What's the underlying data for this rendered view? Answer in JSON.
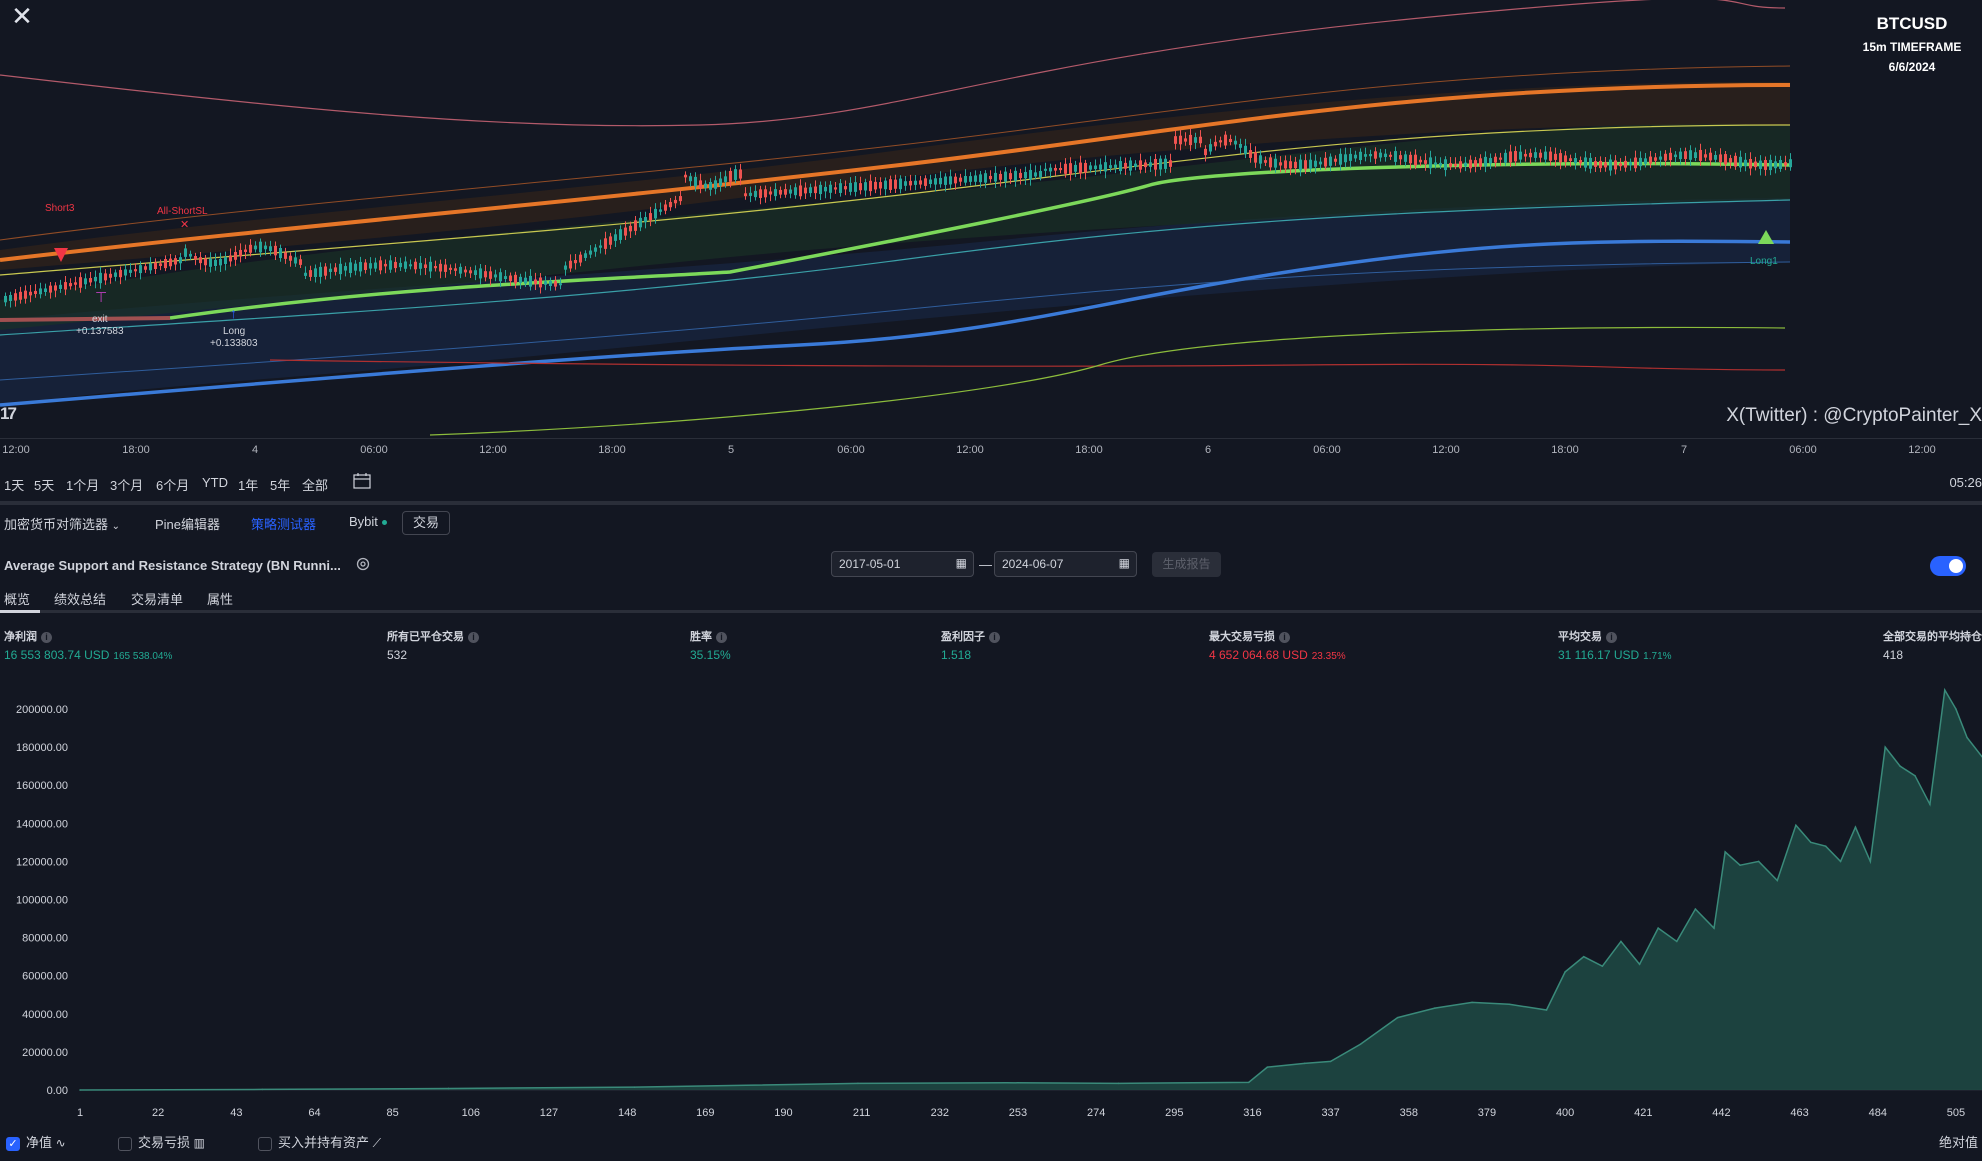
{
  "chart": {
    "symbol": "BTCUSD",
    "timeframe": "15m TIMEFRAME",
    "date": "6/6/2024",
    "watermark": "X(Twitter) : @CryptoPainter_X",
    "logo": "17",
    "labels": {
      "short3": "Short3",
      "all_short_sl": "All-ShortSL",
      "exit": "exit",
      "exit_value": "+0.137583",
      "long": "Long",
      "long_value": "+0.133803",
      "long1": "Long1"
    },
    "time_axis": [
      "12:00",
      "18:00",
      "4",
      "06:00",
      "12:00",
      "18:00",
      "5",
      "06:00",
      "12:00",
      "18:00",
      "6",
      "06:00",
      "12:00",
      "18:00",
      "7",
      "06:00",
      "12:00"
    ]
  },
  "range_bar": {
    "buttons": [
      "1天",
      "5天",
      "1个月",
      "3个月",
      "6个月",
      "YTD",
      "1年",
      "5年",
      "全部"
    ],
    "clock": "05:26"
  },
  "tabs": {
    "screener": "加密货币对筛选器",
    "pine_editor": "Pine编辑器",
    "strategy_tester": "策略测试器",
    "bybit": "Bybit",
    "trade": "交易"
  },
  "strategy": {
    "name": "Average Support and Resistance Strategy (BN Runni...",
    "date_from": "2017-05-01",
    "date_sep": "—",
    "date_to": "2024-06-07",
    "generate_report": "生成报告"
  },
  "sub_tabs": [
    "概览",
    "绩效总结",
    "交易清单",
    "属性"
  ],
  "metrics": [
    {
      "label": "净利润",
      "value": "16 553 803.74 USD",
      "sub": "165 538.04%",
      "color": "green"
    },
    {
      "label": "所有已平仓交易",
      "value": "532",
      "sub": "",
      "color": "white"
    },
    {
      "label": "胜率",
      "value": "35.15%",
      "sub": "",
      "color": "green"
    },
    {
      "label": "盈利因子",
      "value": "1.518",
      "sub": "",
      "color": "green"
    },
    {
      "label": "最大交易亏损",
      "value": "4 652 064.68 USD",
      "sub": "23.35%",
      "color": "red"
    },
    {
      "label": "平均交易",
      "value": "31 116.17 USD",
      "sub": "1.71%",
      "color": "green"
    },
    {
      "label": "全部交易的平均持仓",
      "value": "418",
      "sub": "",
      "color": "white"
    }
  ],
  "chart_data": {
    "type": "area",
    "title": "",
    "xlabel": "",
    "ylabel": "",
    "ylim": [
      0,
      210000
    ],
    "y_ticks": [
      "0.00",
      "20000.00",
      "40000.00",
      "60000.00",
      "80000.00",
      "100000.00",
      "120000.00",
      "140000.00",
      "160000.00",
      "180000.00",
      "200000.00"
    ],
    "x_ticks": [
      "1",
      "22",
      "43",
      "64",
      "85",
      "106",
      "127",
      "148",
      "169",
      "190",
      "211",
      "232",
      "253",
      "274",
      "295",
      "316",
      "337",
      "358",
      "379",
      "400",
      "421",
      "442",
      "463",
      "484",
      "505"
    ],
    "series": [
      {
        "name": "净值",
        "x": [
          1,
          50,
          100,
          150,
          180,
          210,
          250,
          280,
          300,
          315,
          320,
          330,
          337,
          345,
          355,
          365,
          375,
          385,
          395,
          400,
          405,
          410,
          415,
          420,
          425,
          430,
          435,
          440,
          443,
          447,
          452,
          457,
          462,
          466,
          470,
          474,
          478,
          482,
          486,
          490,
          494,
          498,
          502,
          505,
          508,
          512
        ],
        "values": [
          0,
          300,
          800,
          1500,
          2500,
          3500,
          3800,
          3500,
          3800,
          4000,
          12000,
          14000,
          15000,
          24000,
          38000,
          43000,
          46000,
          45000,
          42000,
          62000,
          70000,
          65000,
          78000,
          66000,
          85000,
          78000,
          95000,
          85000,
          125000,
          118000,
          120000,
          110000,
          139000,
          130000,
          128000,
          120000,
          138000,
          120000,
          180000,
          170000,
          165000,
          150000,
          210000,
          200000,
          185000,
          175000
        ]
      }
    ]
  },
  "legend": {
    "equity": "净值",
    "drawdown": "交易亏损",
    "buy_hold": "买入并持有资产",
    "absolute": "绝对值"
  }
}
